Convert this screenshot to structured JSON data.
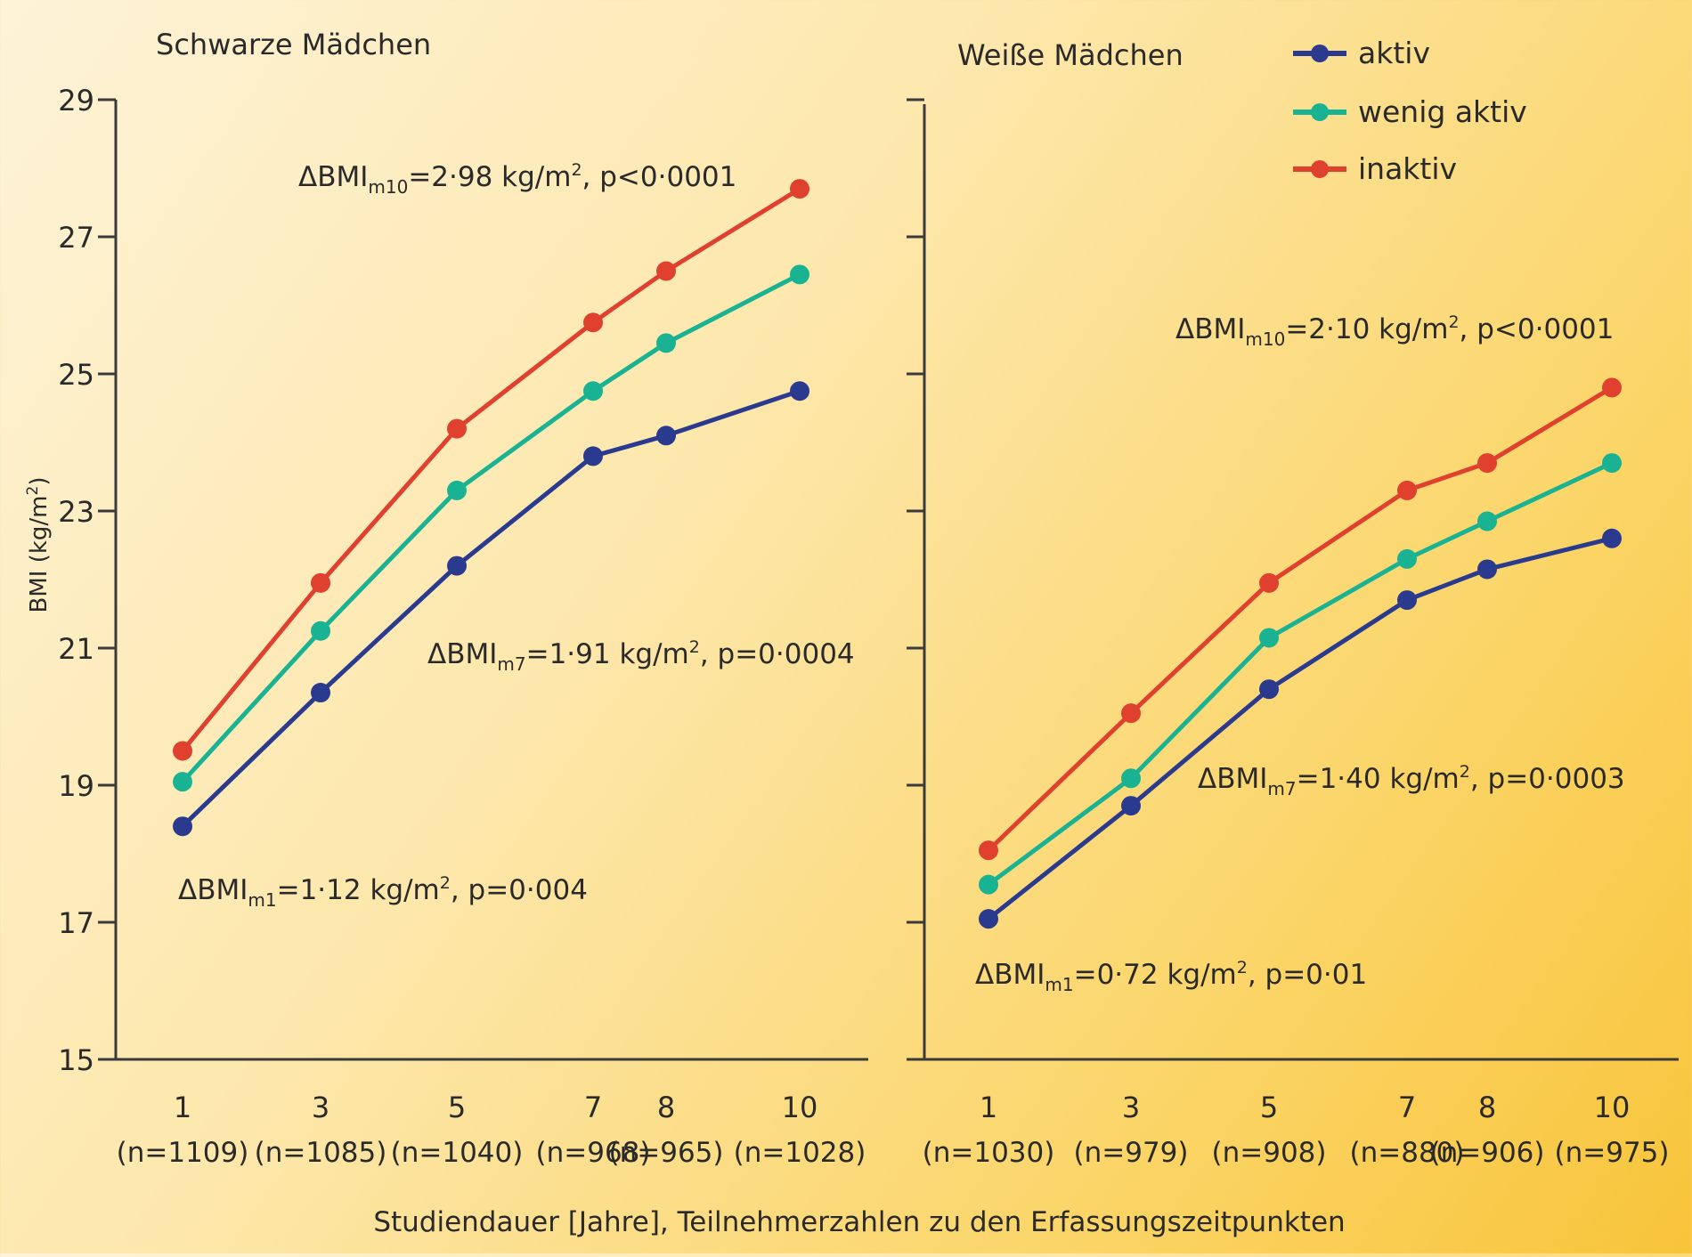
{
  "chart_data": {
    "type": "line",
    "ylabel": {
      "main": "BMI (kg/m",
      "sup": "2",
      "end": ")"
    },
    "xlabel": "Studiendauer [Jahre], Teilnehmerzahlen zu den Erfassungszeitpunkten",
    "ylim": [
      15,
      29
    ],
    "yticks": [
      15,
      17,
      19,
      21,
      23,
      25,
      27,
      29
    ],
    "legend": {
      "position": "top-right",
      "items": [
        {
          "label": "aktiv",
          "color": "#2a3b8f"
        },
        {
          "label": "wenig aktiv",
          "color": "#19b394"
        },
        {
          "label": "inaktiv",
          "color": "#e0402e"
        }
      ]
    },
    "panels": [
      {
        "title": "Schwarze Mädchen",
        "x": [
          1,
          3,
          5,
          7,
          8,
          10
        ],
        "x_labels": [
          "1",
          "3",
          "5",
          "7",
          "8",
          "10"
        ],
        "n_labels": [
          "(n=1109)",
          "(n=1085)",
          "(n=1040)",
          "(n=968)",
          "(n=965)",
          "(n=1028)"
        ],
        "series": [
          {
            "name": "aktiv",
            "color": "#2a3b8f",
            "values": [
              18.4,
              20.35,
              22.2,
              23.8,
              24.1,
              24.75
            ]
          },
          {
            "name": "wenig aktiv",
            "color": "#19b394",
            "values": [
              19.05,
              21.25,
              23.3,
              24.75,
              25.45,
              26.45
            ]
          },
          {
            "name": "inaktiv",
            "color": "#e0402e",
            "values": [
              19.5,
              21.95,
              24.2,
              25.75,
              26.5,
              27.7
            ]
          }
        ],
        "annotations": [
          {
            "pre": "ΔBMI",
            "sub": "m10",
            "mid": "=2·98 kg/m",
            "sup": "2",
            "post": ", p<0·0001"
          },
          {
            "pre": "ΔBMI",
            "sub": "m7",
            "mid": "=1·91 kg/m",
            "sup": "2",
            "post": ", p=0·0004"
          },
          {
            "pre": "ΔBMI",
            "sub": "m1",
            "mid": "=1·12 kg/m",
            "sup": "2",
            "post": ", p=0·004"
          }
        ]
      },
      {
        "title": "Weiße Mädchen",
        "x": [
          1,
          3,
          5,
          7,
          8,
          10
        ],
        "x_labels": [
          "1",
          "3",
          "5",
          "7",
          "8",
          "10"
        ],
        "n_labels": [
          "(n=1030)",
          "(n=979)",
          "(n=908)",
          "(n=880)",
          "(n=906)",
          "(n=975)"
        ],
        "series": [
          {
            "name": "aktiv",
            "color": "#2a3b8f",
            "values": [
              17.05,
              18.7,
              20.4,
              21.7,
              22.15,
              22.6
            ]
          },
          {
            "name": "wenig aktiv",
            "color": "#19b394",
            "values": [
              17.55,
              19.1,
              21.15,
              22.3,
              22.85,
              23.7
            ]
          },
          {
            "name": "inaktiv",
            "color": "#e0402e",
            "values": [
              18.05,
              20.05,
              21.95,
              23.3,
              23.7,
              24.8
            ]
          }
        ],
        "annotations": [
          {
            "pre": "ΔBMI",
            "sub": "m10",
            "mid": "=2·10 kg/m",
            "sup": "2",
            "post": ", p<0·0001"
          },
          {
            "pre": "ΔBMI",
            "sub": "m7",
            "mid": "=1·40 kg/m",
            "sup": "2",
            "post": ", p=0·0003"
          },
          {
            "pre": "ΔBMI",
            "sub": "m1",
            "mid": "=0·72 kg/m",
            "sup": "2",
            "post": ", p=0·01"
          }
        ]
      }
    ]
  }
}
